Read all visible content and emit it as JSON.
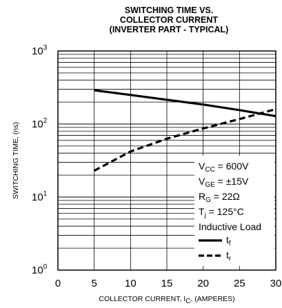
{
  "chart_data": {
    "type": "line",
    "title": [
      "SWITCHING TIME VS.",
      "COLLECTOR CURRENT",
      "(INVERTER PART - TYPICAL)"
    ],
    "xlabel": {
      "main": "COLLECTOR CURRENT, I",
      "sub": "C",
      "tail": ", (AMPERES)"
    },
    "ylabel": "SWITCHING TIME, (ns)",
    "xlim": [
      0,
      30
    ],
    "ylim": [
      1,
      1000
    ],
    "yscale": "log",
    "grid": true,
    "x_ticks": [
      "0",
      "5",
      "10",
      "15",
      "20",
      "25",
      "30"
    ],
    "y_ticks": [
      {
        "value": 1,
        "base": "10",
        "exp": "0"
      },
      {
        "value": 10,
        "base": "10",
        "exp": "1"
      },
      {
        "value": 100,
        "base": "10",
        "exp": "2"
      },
      {
        "value": 1000,
        "base": "10",
        "exp": "3"
      }
    ],
    "conditions": [
      {
        "main": "V",
        "sub": "CC",
        "rest": " = 600V"
      },
      {
        "main": "V",
        "sub": "GE",
        "rest": " = ±15V"
      },
      {
        "main": "R",
        "sub": "G",
        "rest": " = 22Ω"
      },
      {
        "main": "T",
        "sub": "j",
        "rest": " = 125°C"
      },
      {
        "main": "Inductive Load",
        "sub": "",
        "rest": ""
      }
    ],
    "series": [
      {
        "name": "t",
        "sub": "f",
        "style": "solid",
        "x": [
          5,
          10,
          15,
          20,
          25,
          30
        ],
        "y": [
          290,
          250,
          215,
          185,
          155,
          128
        ]
      },
      {
        "name": "t",
        "sub": "r",
        "style": "dashed",
        "x": [
          5,
          10,
          15,
          20,
          25,
          30
        ],
        "y": [
          23,
          42,
          63,
          87,
          117,
          160
        ]
      }
    ]
  }
}
